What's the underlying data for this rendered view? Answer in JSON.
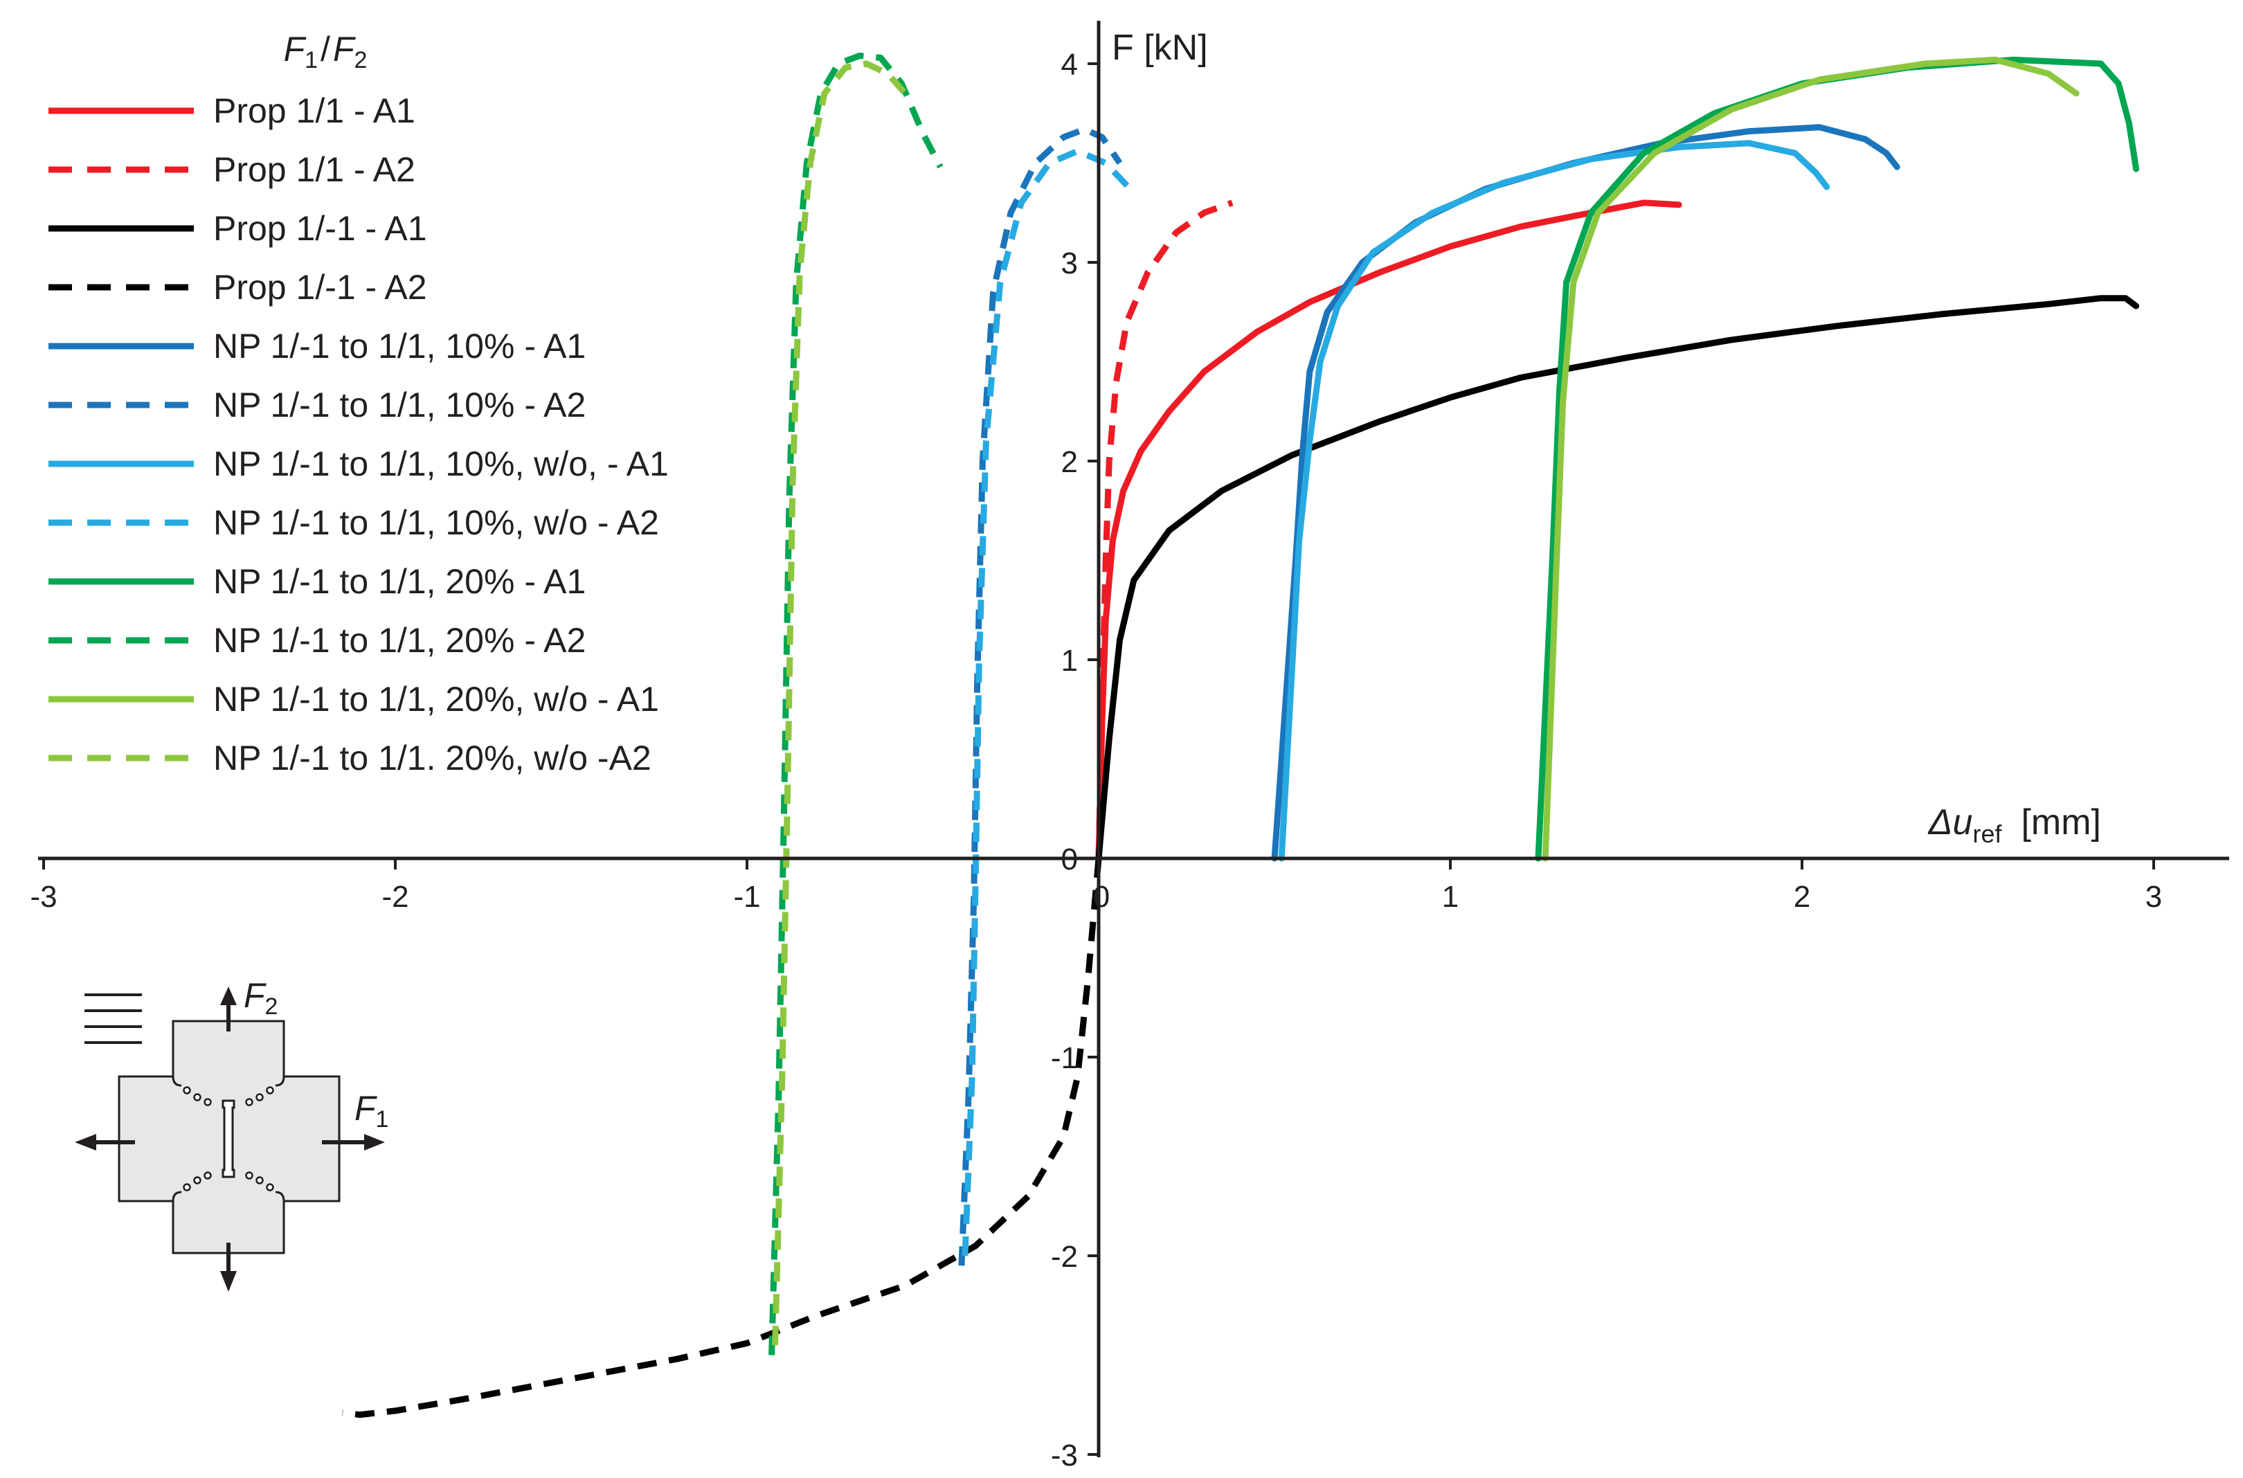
{
  "chart_data": {
    "type": "line",
    "title": "",
    "xlabel": {
      "symbol": "Δu",
      "sub": "ref",
      "unit": "[mm]"
    },
    "ylabel": "F [kN]",
    "xlim": [
      -3,
      3.2
    ],
    "ylim": [
      -3,
      4.2
    ],
    "x_ticks": [
      -3,
      -2,
      -1,
      0,
      1,
      2,
      3
    ],
    "y_ticks": [
      -3,
      -2,
      -1,
      0,
      1,
      2,
      3,
      4
    ],
    "grid": false,
    "legend": {
      "position": "top-left",
      "title": {
        "f1": "F",
        "s1": "1",
        "slash": "/",
        "f2": "F",
        "s2": "2"
      }
    },
    "diagram": {
      "f1": "F",
      "s1": "1",
      "f2": "F",
      "s2": "2"
    },
    "series": [
      {
        "name": "Prop 1/1 - A1",
        "color": "#ed1c24",
        "dash": false,
        "points": [
          [
            0,
            0
          ],
          [
            0.01,
            0.7
          ],
          [
            0.02,
            1.2
          ],
          [
            0.04,
            1.6
          ],
          [
            0.07,
            1.85
          ],
          [
            0.12,
            2.05
          ],
          [
            0.2,
            2.25
          ],
          [
            0.3,
            2.45
          ],
          [
            0.45,
            2.65
          ],
          [
            0.6,
            2.8
          ],
          [
            0.8,
            2.95
          ],
          [
            1.0,
            3.08
          ],
          [
            1.2,
            3.18
          ],
          [
            1.4,
            3.25
          ],
          [
            1.55,
            3.3
          ],
          [
            1.65,
            3.29
          ]
        ]
      },
      {
        "name": "Prop 1/1 - A2",
        "color": "#ed1c24",
        "dash": true,
        "points": [
          [
            0,
            0
          ],
          [
            0.01,
            0.8
          ],
          [
            0.02,
            1.5
          ],
          [
            0.03,
            2.0
          ],
          [
            0.05,
            2.4
          ],
          [
            0.08,
            2.7
          ],
          [
            0.14,
            2.95
          ],
          [
            0.22,
            3.15
          ],
          [
            0.3,
            3.25
          ],
          [
            0.38,
            3.3
          ]
        ]
      },
      {
        "name": "Prop 1/-1 - A1",
        "color": "#000000",
        "dash": false,
        "points": [
          [
            0,
            0
          ],
          [
            0.03,
            0.6
          ],
          [
            0.06,
            1.1
          ],
          [
            0.1,
            1.4
          ],
          [
            0.2,
            1.65
          ],
          [
            0.35,
            1.85
          ],
          [
            0.55,
            2.03
          ],
          [
            0.8,
            2.2
          ],
          [
            1.0,
            2.32
          ],
          [
            1.2,
            2.42
          ],
          [
            1.5,
            2.52
          ],
          [
            1.8,
            2.61
          ],
          [
            2.1,
            2.68
          ],
          [
            2.4,
            2.74
          ],
          [
            2.7,
            2.79
          ],
          [
            2.85,
            2.82
          ],
          [
            2.92,
            2.82
          ],
          [
            2.95,
            2.78
          ]
        ]
      },
      {
        "name": "Prop 1/-1 - A2",
        "color": "#000000",
        "dash": true,
        "points": [
          [
            0,
            0
          ],
          [
            -0.03,
            -0.6
          ],
          [
            -0.06,
            -1.1
          ],
          [
            -0.1,
            -1.4
          ],
          [
            -0.2,
            -1.7
          ],
          [
            -0.35,
            -1.95
          ],
          [
            -0.55,
            -2.15
          ],
          [
            -0.8,
            -2.3
          ],
          [
            -1.0,
            -2.44
          ],
          [
            -1.2,
            -2.52
          ],
          [
            -1.5,
            -2.62
          ],
          [
            -1.8,
            -2.72
          ],
          [
            -2.0,
            -2.78
          ],
          [
            -2.1,
            -2.8
          ],
          [
            -2.15,
            -2.79
          ]
        ]
      },
      {
        "name": "NP 1/-1 to 1/1, 10% - A1",
        "color": "#1b75bc",
        "dash": false,
        "points": [
          [
            0.5,
            0
          ],
          [
            0.56,
            1.5
          ],
          [
            0.58,
            2.05
          ],
          [
            0.6,
            2.45
          ],
          [
            0.65,
            2.75
          ],
          [
            0.75,
            3.0
          ],
          [
            0.9,
            3.2
          ],
          [
            1.1,
            3.37
          ],
          [
            1.35,
            3.5
          ],
          [
            1.6,
            3.6
          ],
          [
            1.85,
            3.66
          ],
          [
            2.05,
            3.68
          ],
          [
            2.18,
            3.62
          ],
          [
            2.24,
            3.55
          ],
          [
            2.27,
            3.48
          ]
        ]
      },
      {
        "name": "NP 1/-1 to 1/1, 10% - A2",
        "color": "#1b75bc",
        "dash": true,
        "points": [
          [
            -0.39,
            -2.05
          ],
          [
            -0.37,
            -1.2
          ],
          [
            -0.355,
            -0.2
          ],
          [
            -0.345,
            0.9
          ],
          [
            -0.33,
            2.0
          ],
          [
            -0.3,
            2.85
          ],
          [
            -0.25,
            3.25
          ],
          [
            -0.18,
            3.5
          ],
          [
            -0.1,
            3.63
          ],
          [
            -0.04,
            3.67
          ],
          [
            0.01,
            3.63
          ],
          [
            0.06,
            3.5
          ]
        ]
      },
      {
        "name": "NP 1/-1 to 1/1, 10%, w/o, - A1",
        "color": "#27aae1",
        "dash": false,
        "points": [
          [
            0.52,
            0
          ],
          [
            0.57,
            1.6
          ],
          [
            0.6,
            2.1
          ],
          [
            0.63,
            2.5
          ],
          [
            0.68,
            2.78
          ],
          [
            0.78,
            3.05
          ],
          [
            0.95,
            3.25
          ],
          [
            1.15,
            3.4
          ],
          [
            1.4,
            3.52
          ],
          [
            1.65,
            3.58
          ],
          [
            1.85,
            3.6
          ],
          [
            1.98,
            3.55
          ],
          [
            2.04,
            3.45
          ],
          [
            2.07,
            3.38
          ]
        ]
      },
      {
        "name": "NP 1/-1 to 1/1, 10%, w/o - A2",
        "color": "#27aae1",
        "dash": true,
        "points": [
          [
            -0.38,
            -2.0
          ],
          [
            -0.36,
            -1.1
          ],
          [
            -0.35,
            -0.1
          ],
          [
            -0.34,
            1.0
          ],
          [
            -0.32,
            2.1
          ],
          [
            -0.28,
            2.9
          ],
          [
            -0.22,
            3.3
          ],
          [
            -0.14,
            3.5
          ],
          [
            -0.06,
            3.56
          ],
          [
            0.02,
            3.5
          ],
          [
            0.1,
            3.35
          ]
        ]
      },
      {
        "name": "NP 1/-1 to 1/1, 20% - A1",
        "color": "#00a651",
        "dash": false,
        "points": [
          [
            1.25,
            0
          ],
          [
            1.29,
            1.5
          ],
          [
            1.31,
            2.35
          ],
          [
            1.33,
            2.9
          ],
          [
            1.4,
            3.25
          ],
          [
            1.55,
            3.55
          ],
          [
            1.75,
            3.75
          ],
          [
            2.0,
            3.9
          ],
          [
            2.3,
            3.98
          ],
          [
            2.6,
            4.02
          ],
          [
            2.85,
            4.0
          ],
          [
            2.9,
            3.9
          ],
          [
            2.93,
            3.7
          ],
          [
            2.95,
            3.47
          ]
        ]
      },
      {
        "name": "NP 1/-1 to 1/1, 20% - A2",
        "color": "#00a651",
        "dash": true,
        "points": [
          [
            -0.93,
            -2.5
          ],
          [
            -0.91,
            -1.2
          ],
          [
            -0.895,
            0.2
          ],
          [
            -0.88,
            1.8
          ],
          [
            -0.86,
            2.9
          ],
          [
            -0.83,
            3.5
          ],
          [
            -0.79,
            3.85
          ],
          [
            -0.74,
            4.0
          ],
          [
            -0.68,
            4.04
          ],
          [
            -0.62,
            4.03
          ],
          [
            -0.56,
            3.9
          ],
          [
            -0.5,
            3.65
          ],
          [
            -0.45,
            3.48
          ]
        ]
      },
      {
        "name": "NP 1/-1 to 1/1, 20%, w/o - A1",
        "color": "#8dc63f",
        "dash": false,
        "points": [
          [
            1.27,
            0
          ],
          [
            1.3,
            1.4
          ],
          [
            1.32,
            2.3
          ],
          [
            1.35,
            2.9
          ],
          [
            1.42,
            3.25
          ],
          [
            1.58,
            3.55
          ],
          [
            1.8,
            3.77
          ],
          [
            2.05,
            3.92
          ],
          [
            2.35,
            4.0
          ],
          [
            2.55,
            4.02
          ],
          [
            2.7,
            3.95
          ],
          [
            2.78,
            3.85
          ]
        ]
      },
      {
        "name": "NP 1/-1 to 1/1. 20%, w/o -A2",
        "color": "#8dc63f",
        "dash": true,
        "points": [
          [
            -0.92,
            -2.45
          ],
          [
            -0.9,
            -1.1
          ],
          [
            -0.885,
            0.3
          ],
          [
            -0.87,
            1.9
          ],
          [
            -0.85,
            2.95
          ],
          [
            -0.82,
            3.5
          ],
          [
            -0.78,
            3.85
          ],
          [
            -0.72,
            3.98
          ],
          [
            -0.66,
            4.0
          ],
          [
            -0.6,
            3.95
          ],
          [
            -0.55,
            3.85
          ]
        ]
      }
    ]
  }
}
